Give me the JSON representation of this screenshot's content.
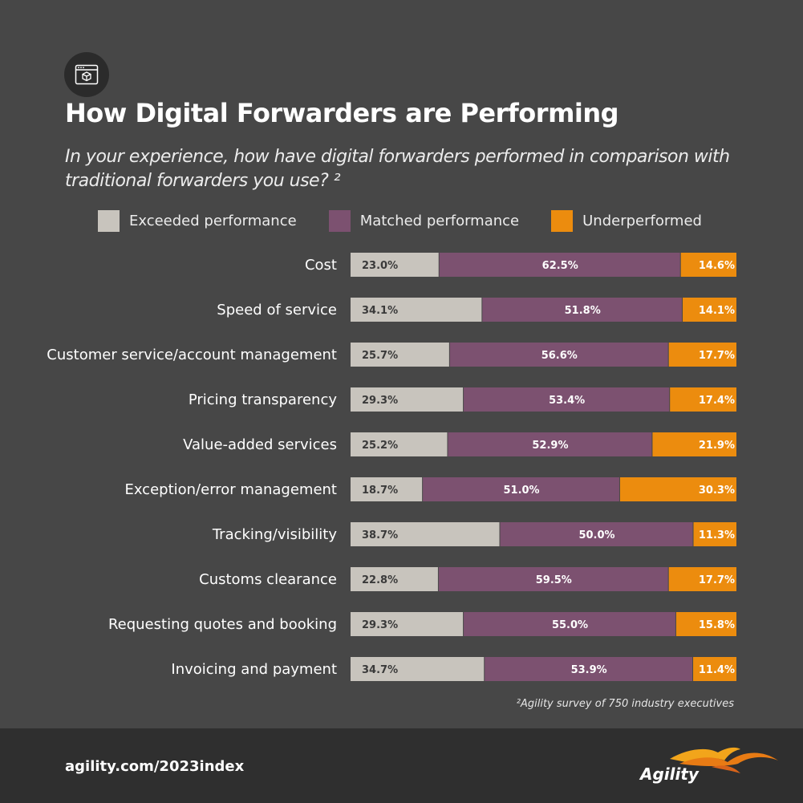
{
  "header": {
    "icon": "browser-box-icon",
    "title": "How Digital Forwarders are Performing",
    "subtitle": "In your experience, how have digital forwarders performed in comparison with traditional forwarders you use? ²"
  },
  "colors": {
    "background": "#474747",
    "exceeded": "#c8c4bd",
    "matched": "#7c5170",
    "under": "#ec8c0e"
  },
  "chart_data": {
    "type": "bar",
    "orientation": "horizontal",
    "stacked": true,
    "categories": [
      "Cost",
      "Speed of service",
      "Customer service/account management",
      "Pricing transparency",
      "Value-added services",
      "Exception/error management",
      "Tracking/visibility",
      "Customs clearance",
      "Requesting quotes and booking",
      "Invoicing and payment"
    ],
    "series": [
      {
        "name": "Exceeded performance",
        "values": [
          23.0,
          34.1,
          25.7,
          29.3,
          25.2,
          18.7,
          38.7,
          22.8,
          29.3,
          34.7
        ]
      },
      {
        "name": "Matched performance",
        "values": [
          62.5,
          51.8,
          56.6,
          53.4,
          52.9,
          51.0,
          50.0,
          59.5,
          55.0,
          53.9
        ]
      },
      {
        "name": "Underperformed",
        "values": [
          14.6,
          14.1,
          17.7,
          17.4,
          21.9,
          30.3,
          11.3,
          17.7,
          15.8,
          11.4
        ]
      }
    ],
    "value_suffix": "%",
    "xlim": [
      0,
      100
    ],
    "legend_position": "top"
  },
  "footnote": "²Agility survey of 750 industry executives",
  "footer": {
    "url": "agility.com/2023index",
    "logo_text": "Agility"
  }
}
